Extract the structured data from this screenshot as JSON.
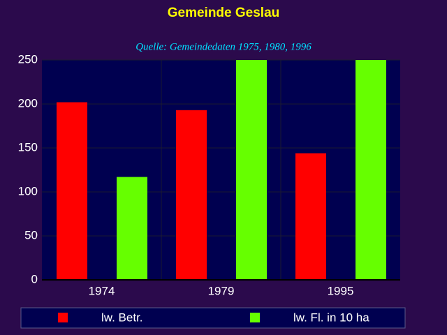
{
  "chart_data": {
    "type": "bar",
    "title": "Gemeinde Geslau",
    "subtitle": "Quelle: Gemeindedaten 1975, 1980, 1996",
    "categories": [
      "1974",
      "1979",
      "1995"
    ],
    "series": [
      {
        "name": "lw. Betr.",
        "color": "#ff0000",
        "values": [
          202,
          193,
          144
        ]
      },
      {
        "name": "lw. Fl. in 10 ha",
        "color": "#66ff00",
        "values": [
          117,
          250,
          250
        ]
      }
    ],
    "ylim": [
      0,
      250
    ],
    "yticks": [
      0,
      50,
      100,
      150,
      200,
      250
    ],
    "grid": true
  }
}
